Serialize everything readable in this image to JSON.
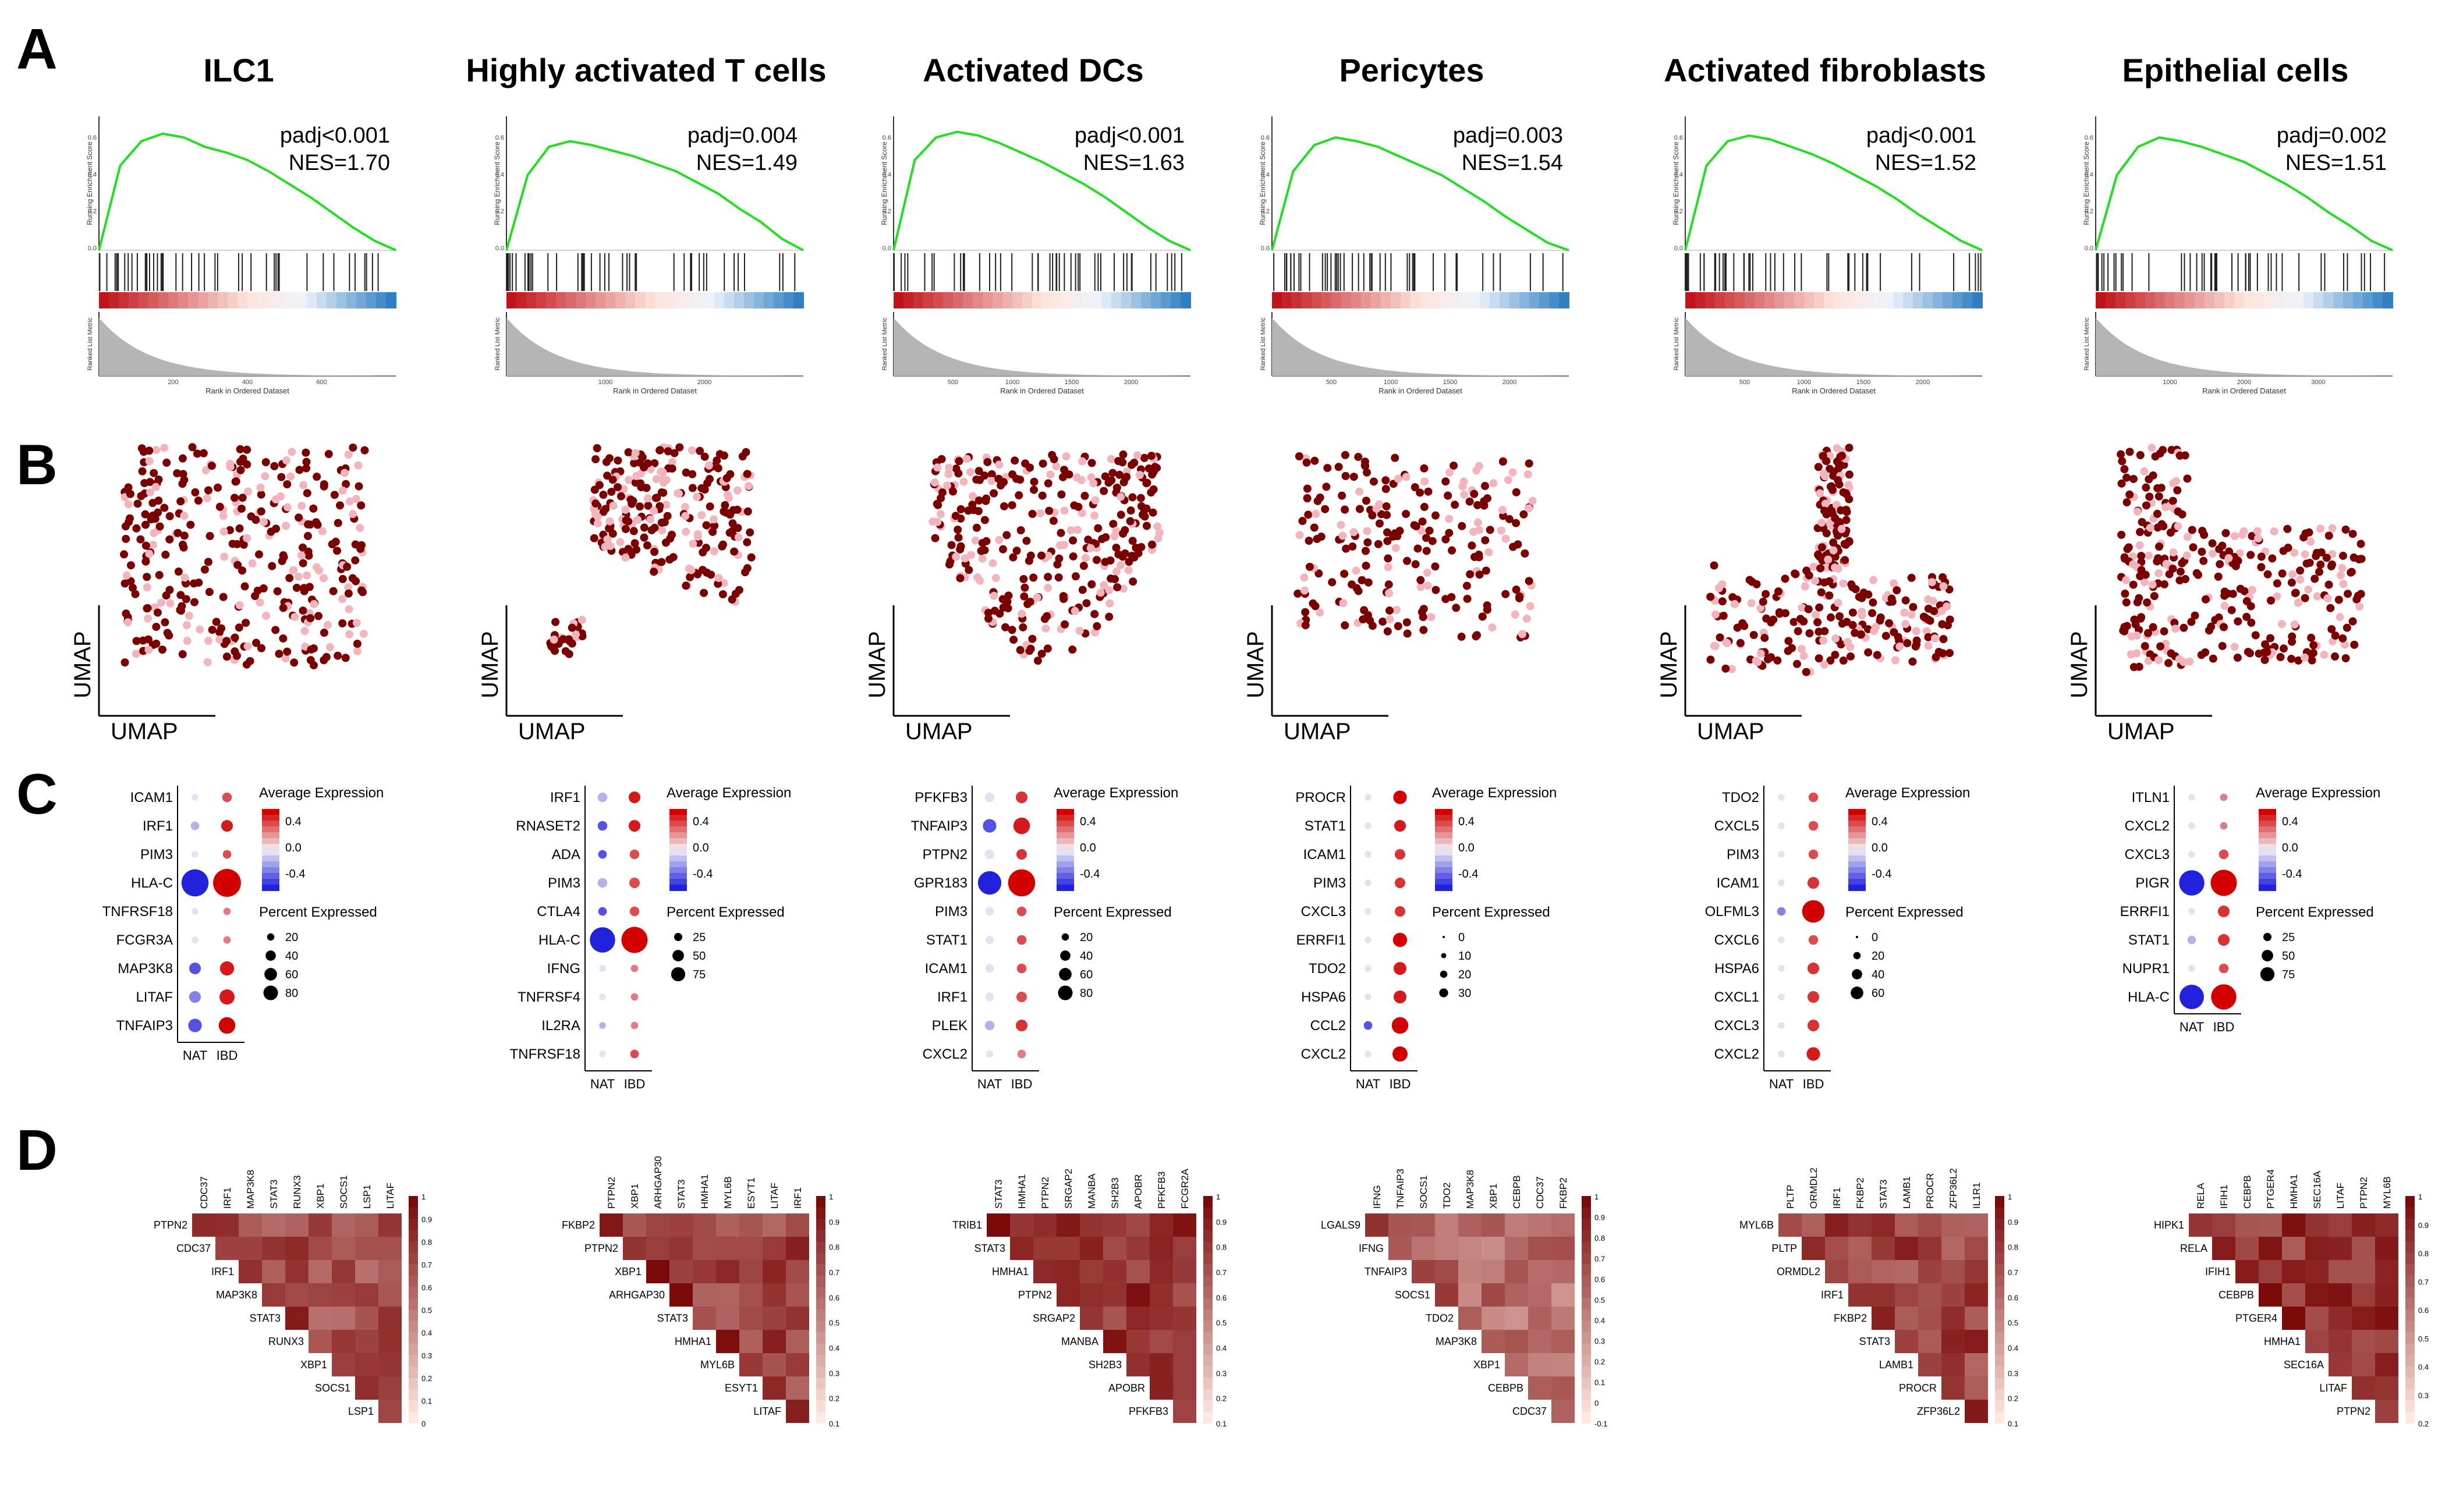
{
  "panel_letters": {
    "a": "A",
    "b": "B",
    "c": "C",
    "d": "D"
  },
  "legend_text": {
    "avg_expression": "Average Expression",
    "pct_expressed": "Percent Expressed",
    "umap": "UMAP",
    "rank_axis": "Rank in Ordered Dataset",
    "res_axis": "Running Enrichment Score",
    "metric_axis": "Ranked List Metric",
    "group_nat": "NAT",
    "group_ibd": "IBD"
  },
  "colors": {
    "gsea_line": "#22dd22",
    "umap_high": "#7a0000",
    "umap_low": "#f2b5bd",
    "dot_high": "#d40000",
    "dot_low": "#2222dd",
    "corr_high": "#7a0a0a",
    "corr_low": "#ffe8e0"
  },
  "chart_data": [
    {
      "type": "line",
      "panel": "A",
      "title": "ILC1",
      "padj_label": "padj<0.001",
      "nes_label": "NES=1.70",
      "es_curve": [
        0,
        0.45,
        0.58,
        0.62,
        0.6,
        0.55,
        0.52,
        0.48,
        0.42,
        0.35,
        0.28,
        0.2,
        0.12,
        0.05,
        0
      ],
      "y_ticks": [
        "0.6",
        "0.4",
        "0.2",
        "0.0"
      ],
      "x_ticks": [
        "200",
        "400",
        "600"
      ],
      "umap_density": 0.95,
      "dotplot": {
        "genes": [
          "ICAM1",
          "IRF1",
          "PIM3",
          "HLA-C",
          "TNFRSF18",
          "FCGR3A",
          "MAP3K8",
          "LITAF",
          "TNFAIP3"
        ],
        "nat_expr": [
          0.0,
          -0.1,
          0.0,
          -0.4,
          0.0,
          0.0,
          -0.3,
          -0.2,
          -0.3
        ],
        "nat_pct": [
          5,
          8,
          5,
          80,
          5,
          5,
          15,
          15,
          20
        ],
        "ibd_expr": [
          0.3,
          0.4,
          0.3,
          0.45,
          0.2,
          0.2,
          0.4,
          0.4,
          0.45
        ],
        "ibd_pct": [
          10,
          15,
          8,
          85,
          6,
          6,
          22,
          25,
          30
        ],
        "color_ticks": [
          "0.4",
          "0.0",
          "-0.4"
        ],
        "size_legend": [
          20,
          40,
          60,
          80
        ]
      },
      "corr_genes": [
        "CDC37",
        "IRF1",
        "MAP3K8",
        "STAT3",
        "RUNX3",
        "XBP1",
        "SOCS1",
        "LSP1",
        "LITAF"
      ],
      "corr_row_genes": [
        "PTPN2",
        "CDC37",
        "IRF1",
        "MAP3K8",
        "STAT3",
        "RUNX3",
        "XBP1",
        "SOCS1",
        "LSP1"
      ],
      "corr_scale": [
        "1",
        "0.9",
        "0.8",
        "0.7",
        "0.6",
        "0.5",
        "0.4",
        "0.3",
        "0.2",
        "0.1",
        "0"
      ],
      "corr_base": 0.7
    },
    {
      "type": "line",
      "panel": "A",
      "title": "Highly activated T cells",
      "padj_label": "padj=0.004",
      "nes_label": "NES=1.49",
      "es_curve": [
        0,
        0.4,
        0.55,
        0.58,
        0.56,
        0.53,
        0.5,
        0.46,
        0.42,
        0.36,
        0.3,
        0.22,
        0.15,
        0.06,
        0
      ],
      "y_ticks": [
        "0.6",
        "0.4",
        "0.2",
        "0.0"
      ],
      "x_ticks": [
        "1000",
        "2000"
      ],
      "umap_density": 0.7,
      "dotplot": {
        "genes": [
          "IRF1",
          "RNASET2",
          "ADA",
          "PIM3",
          "CTLA4",
          "HLA-C",
          "IFNG",
          "TNFRSF4",
          "IL2RA",
          "TNFRSF18"
        ],
        "nat_expr": [
          -0.1,
          -0.3,
          -0.3,
          -0.1,
          -0.3,
          -0.4,
          0.0,
          0.0,
          -0.1,
          0.0
        ],
        "nat_pct": [
          10,
          10,
          8,
          10,
          8,
          70,
          5,
          5,
          5,
          5
        ],
        "ibd_expr": [
          0.4,
          0.4,
          0.3,
          0.3,
          0.3,
          0.45,
          0.2,
          0.2,
          0.2,
          0.3
        ],
        "ibd_pct": [
          15,
          15,
          10,
          12,
          10,
          75,
          6,
          6,
          6,
          8
        ],
        "color_ticks": [
          "0.4",
          "0.0",
          "-0.4"
        ],
        "size_legend": [
          25,
          50,
          75
        ]
      },
      "corr_genes": [
        "PTPN2",
        "XBP1",
        "ARHGAP30",
        "STAT3",
        "HMHA1",
        "MYL6B",
        "ESYT1",
        "LITAF",
        "IRF1"
      ],
      "corr_row_genes": [
        "FKBP2",
        "PTPN2",
        "XBP1",
        "ARHGAP30",
        "STAT3",
        "HMHA1",
        "MYL6B",
        "ESYT1",
        "LITAF"
      ],
      "corr_scale": [
        "1",
        "0.9",
        "0.8",
        "0.7",
        "0.6",
        "0.5",
        "0.4",
        "0.3",
        "0.2",
        "0.1"
      ],
      "corr_base": 0.75
    },
    {
      "type": "line",
      "panel": "A",
      "title": "Activated DCs",
      "padj_label": "padj<0.001",
      "nes_label": "NES=1.63",
      "es_curve": [
        0,
        0.48,
        0.6,
        0.63,
        0.61,
        0.57,
        0.52,
        0.47,
        0.41,
        0.35,
        0.28,
        0.2,
        0.12,
        0.05,
        0
      ],
      "y_ticks": [
        "0.6",
        "0.4",
        "0.2",
        "0.0"
      ],
      "x_ticks": [
        "500",
        "1000",
        "1500",
        "2000"
      ],
      "umap_density": 0.85,
      "dotplot": {
        "genes": [
          "PFKFB3",
          "TNFAIP3",
          "PTPN2",
          "GPR183",
          "PIM3",
          "STAT1",
          "ICAM1",
          "IRF1",
          "PLEK",
          "CXCL2"
        ],
        "nat_expr": [
          0.0,
          -0.3,
          0.0,
          -0.4,
          0.0,
          0.0,
          0.0,
          0.0,
          -0.1,
          0.0
        ],
        "nat_pct": [
          10,
          20,
          10,
          60,
          8,
          8,
          8,
          8,
          10,
          6
        ],
        "ibd_expr": [
          0.35,
          0.4,
          0.35,
          0.45,
          0.3,
          0.3,
          0.3,
          0.3,
          0.35,
          0.2
        ],
        "ibd_pct": [
          15,
          30,
          12,
          80,
          10,
          10,
          10,
          12,
          15,
          8
        ],
        "color_ticks": [
          "0.4",
          "0.0",
          "-0.4"
        ],
        "size_legend": [
          20,
          40,
          60,
          80
        ]
      },
      "corr_genes": [
        "STAT3",
        "HMHA1",
        "PTPN2",
        "SRGAP2",
        "MANBA",
        "SH2B3",
        "APOBR",
        "PFKFB3",
        "FCGR2A"
      ],
      "corr_row_genes": [
        "TRIB1",
        "STAT3",
        "HMHA1",
        "PTPN2",
        "SRGAP2",
        "MANBA",
        "SH2B3",
        "APOBR",
        "PFKFB3"
      ],
      "corr_scale": [
        "1",
        "0.9",
        "0.8",
        "0.7",
        "0.6",
        "0.5",
        "0.4",
        "0.3",
        "0.2",
        "0.1"
      ],
      "corr_base": 0.8
    },
    {
      "type": "line",
      "panel": "A",
      "title": "Pericytes",
      "padj_label": "padj=0.003",
      "nes_label": "NES=1.54",
      "es_curve": [
        0,
        0.42,
        0.56,
        0.6,
        0.58,
        0.55,
        0.5,
        0.45,
        0.4,
        0.33,
        0.26,
        0.18,
        0.11,
        0.04,
        0
      ],
      "y_ticks": [
        "0.6",
        "0.4",
        "0.2",
        "0.0"
      ],
      "x_ticks": [
        "500",
        "1000",
        "1500",
        "2000"
      ],
      "umap_density": 0.6,
      "dotplot": {
        "genes": [
          "PROCR",
          "STAT1",
          "ICAM1",
          "PIM3",
          "CXCL3",
          "ERRFI1",
          "TDO2",
          "HSPA6",
          "CCL2",
          "CXCL2"
        ],
        "nat_expr": [
          0.0,
          0.0,
          0.0,
          0.0,
          0.0,
          0.0,
          0.0,
          0.0,
          -0.3,
          0.0
        ],
        "nat_pct": [
          5,
          5,
          5,
          5,
          5,
          5,
          5,
          5,
          8,
          5
        ],
        "ibd_expr": [
          0.45,
          0.4,
          0.35,
          0.35,
          0.35,
          0.45,
          0.4,
          0.4,
          0.45,
          0.45
        ],
        "ibd_pct": [
          20,
          15,
          12,
          12,
          12,
          22,
          18,
          18,
          30,
          25
        ],
        "color_ticks": [
          "0.4",
          "0.0",
          "-0.4"
        ],
        "size_legend": [
          0,
          10,
          20,
          30
        ]
      },
      "corr_genes": [
        "IFNG",
        "TNFAIP3",
        "SOCS1",
        "TDO2",
        "MAP3K8",
        "XBP1",
        "CEBPB",
        "CDC37",
        "FKBP2"
      ],
      "corr_row_genes": [
        "LGALS9",
        "IFNG",
        "TNFAIP3",
        "SOCS1",
        "TDO2",
        "MAP3K8",
        "XBP1",
        "CEBPB",
        "CDC37"
      ],
      "corr_scale": [
        "1",
        "0.9",
        "0.8",
        "0.7",
        "0.6",
        "0.5",
        "0.4",
        "0.3",
        "0.2",
        "0.1",
        "0",
        "-0.1"
      ],
      "corr_base": 0.55
    },
    {
      "type": "line",
      "panel": "A",
      "title": "Activated fibroblasts",
      "padj_label": "padj<0.001",
      "nes_label": "NES=1.52",
      "es_curve": [
        0,
        0.45,
        0.58,
        0.61,
        0.59,
        0.55,
        0.51,
        0.46,
        0.4,
        0.34,
        0.27,
        0.19,
        0.12,
        0.05,
        0
      ],
      "y_ticks": [
        "0.6",
        "0.4",
        "0.2",
        "0.0"
      ],
      "x_ticks": [
        "500",
        "1000",
        "1500",
        "2000"
      ],
      "umap_density": 0.85,
      "dotplot": {
        "genes": [
          "TDO2",
          "CXCL5",
          "PIM3",
          "ICAM1",
          "OLFML3",
          "CXCL6",
          "HSPA6",
          "CXCL1",
          "CXCL3",
          "CXCL2"
        ],
        "nat_expr": [
          0.0,
          0.0,
          0.0,
          0.0,
          -0.2,
          0.0,
          0.0,
          0.0,
          0.0,
          0.0
        ],
        "nat_pct": [
          5,
          5,
          5,
          5,
          8,
          5,
          5,
          5,
          5,
          5
        ],
        "ibd_expr": [
          0.3,
          0.3,
          0.3,
          0.35,
          0.45,
          0.3,
          0.35,
          0.35,
          0.35,
          0.4
        ],
        "ibd_pct": [
          10,
          10,
          10,
          15,
          55,
          10,
          15,
          15,
          15,
          20
        ],
        "color_ticks": [
          "0.4",
          "0.0",
          "-0.4"
        ],
        "size_legend": [
          0,
          20,
          40,
          60
        ]
      },
      "corr_genes": [
        "PLTP",
        "ORMDL2",
        "IRF1",
        "FKBP2",
        "STAT3",
        "LAMB1",
        "PROCR",
        "ZFP36L2",
        "IL1R1"
      ],
      "corr_row_genes": [
        "MYL6B",
        "PLTP",
        "ORMDL2",
        "IRF1",
        "FKBP2",
        "STAT3",
        "LAMB1",
        "PROCR",
        "ZFP36L2"
      ],
      "corr_scale": [
        "1",
        "0.9",
        "0.8",
        "0.7",
        "0.6",
        "0.5",
        "0.4",
        "0.3",
        "0.2",
        "0.1"
      ],
      "corr_base": 0.75
    },
    {
      "type": "line",
      "panel": "A",
      "title": "Epithelial cells",
      "padj_label": "padj=0.002",
      "nes_label": "NES=1.51",
      "es_curve": [
        0,
        0.4,
        0.55,
        0.6,
        0.58,
        0.55,
        0.51,
        0.47,
        0.41,
        0.35,
        0.28,
        0.2,
        0.13,
        0.05,
        0
      ],
      "y_ticks": [
        "0.6",
        "0.4",
        "0.2",
        "0.0"
      ],
      "x_ticks": [
        "1000",
        "2000",
        "3000"
      ],
      "umap_density": 0.85,
      "dotplot": {
        "genes": [
          "ITLN1",
          "CXCL2",
          "CXCL3",
          "PIGR",
          "ERRFI1",
          "STAT1",
          "NUPR1",
          "HLA-C"
        ],
        "nat_expr": [
          0.0,
          0.0,
          0.0,
          -0.4,
          0.0,
          -0.1,
          0.0,
          -0.4
        ],
        "nat_pct": [
          5,
          5,
          5,
          70,
          5,
          8,
          5,
          65
        ],
        "ibd_expr": [
          0.2,
          0.2,
          0.3,
          0.45,
          0.35,
          0.35,
          0.3,
          0.45
        ],
        "ibd_pct": [
          6,
          6,
          10,
          75,
          15,
          15,
          10,
          70
        ],
        "color_ticks": [
          "0.4",
          "0.0",
          "-0.4"
        ],
        "size_legend": [
          25,
          50,
          75
        ]
      },
      "corr_genes": [
        "RELA",
        "IFIH1",
        "CEBPB",
        "PTGER4",
        "HMHA1",
        "SEC16A",
        "LITAF",
        "PTPN2",
        "MYL6B"
      ],
      "corr_row_genes": [
        "HIPK1",
        "RELA",
        "IFIH1",
        "CEBPB",
        "PTGER4",
        "HMHA1",
        "SEC16A",
        "LITAF",
        "PTPN2"
      ],
      "corr_scale": [
        "1",
        "0.9",
        "0.8",
        "0.7",
        "0.6",
        "0.5",
        "0.4",
        "0.3",
        "0.2"
      ],
      "corr_base": 0.8
    }
  ]
}
